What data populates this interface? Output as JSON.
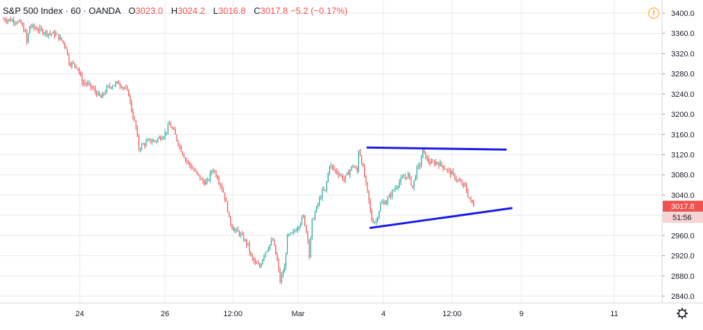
{
  "legend": {
    "symbol": "S&P 500 Index · 60 · OANDA",
    "open_label": "O",
    "open": "3023.0",
    "high_label": "H",
    "high": "3024.2",
    "low_label": "L",
    "low": "3016.8",
    "close_label": "C",
    "close": "3017.8",
    "change": "−5.2 (−0.17%)"
  },
  "price_axis": {
    "ticks": [
      "3400.0",
      "3360.0",
      "3320.0",
      "3280.0",
      "3240.0",
      "3200.0",
      "3160.0",
      "3120.0",
      "3080.0",
      "3040.0",
      "3000.0",
      "2960.0",
      "2920.0",
      "2880.0",
      "2840.0"
    ],
    "last_price": "3017.8",
    "countdown": "51:56"
  },
  "time_axis": {
    "ticks": [
      "24",
      "26",
      "12:00",
      "Mar",
      "4",
      "12:00",
      "9",
      "11"
    ]
  },
  "colors": {
    "up": "#26a69a",
    "down": "#ef5350",
    "trendline": "#1a1ae8",
    "grid": "#e9eaee",
    "axis_text": "#131722"
  },
  "icons": {
    "alert": "alert-icon",
    "settings": "gear-icon"
  },
  "chart_data": {
    "type": "candlestick",
    "instrument": "S&P 500 Index",
    "interval": "60",
    "source": "OANDA",
    "y_range": [
      2830,
      3410
    ],
    "closes_path": [
      [
        0,
        3388
      ],
      [
        4,
        3387
      ],
      [
        8,
        3385
      ],
      [
        12,
        3379
      ],
      [
        15,
        3362
      ],
      [
        16,
        3341
      ],
      [
        18,
        3375
      ],
      [
        22,
        3370
      ],
      [
        27,
        3364
      ],
      [
        31,
        3360
      ],
      [
        36,
        3358
      ],
      [
        40,
        3346
      ],
      [
        43,
        3333
      ],
      [
        45,
        3302
      ],
      [
        49,
        3298
      ],
      [
        51,
        3292
      ],
      [
        54,
        3264
      ],
      [
        59,
        3257
      ],
      [
        63,
        3245
      ],
      [
        67,
        3232
      ],
      [
        71,
        3251
      ],
      [
        75,
        3258
      ],
      [
        79,
        3262
      ],
      [
        83,
        3252
      ],
      [
        86,
        3240
      ],
      [
        88,
        3207
      ],
      [
        91,
        3173
      ],
      [
        93,
        3132
      ],
      [
        96,
        3140
      ],
      [
        100,
        3147
      ],
      [
        104,
        3147
      ],
      [
        108,
        3155
      ],
      [
        111,
        3162
      ],
      [
        114,
        3180
      ],
      [
        117,
        3165
      ],
      [
        119,
        3150
      ],
      [
        122,
        3130
      ],
      [
        125,
        3111
      ],
      [
        128,
        3099
      ],
      [
        131,
        3088
      ],
      [
        134,
        3077
      ],
      [
        137,
        3066
      ],
      [
        140,
        3065
      ],
      [
        143,
        3088
      ],
      [
        144,
        3091
      ],
      [
        147,
        3076
      ],
      [
        151,
        3046
      ],
      [
        154,
        3012
      ],
      [
        155,
        2990
      ],
      [
        158,
        2973
      ],
      [
        162,
        2964
      ],
      [
        165,
        2953
      ],
      [
        168,
        2940
      ],
      [
        170,
        2918
      ],
      [
        173,
        2904
      ],
      [
        176,
        2898
      ],
      [
        179,
        2924
      ],
      [
        182,
        2938
      ],
      [
        185,
        2951
      ],
      [
        188,
        2909
      ],
      [
        190,
        2870
      ],
      [
        193,
        2896
      ],
      [
        195,
        2957
      ],
      [
        199,
        2965
      ],
      [
        203,
        2982
      ],
      [
        206,
        2997
      ],
      [
        209,
        2955
      ],
      [
        210,
        2918
      ],
      [
        212,
        2988
      ],
      [
        216,
        3022
      ],
      [
        219,
        3047
      ],
      [
        221,
        3048
      ],
      [
        224,
        3100
      ],
      [
        227,
        3090
      ],
      [
        231,
        3081
      ],
      [
        234,
        3070
      ],
      [
        237,
        3085
      ],
      [
        240,
        3099
      ],
      [
        243,
        3086
      ],
      [
        244,
        3130
      ],
      [
        245,
        3120
      ],
      [
        247,
        3092
      ],
      [
        250,
        3045
      ],
      [
        253,
        2990
      ],
      [
        256,
        2988
      ],
      [
        259,
        3022
      ],
      [
        263,
        3028
      ],
      [
        268,
        3050
      ],
      [
        273,
        3070
      ],
      [
        278,
        3080
      ],
      [
        281,
        3055
      ],
      [
        284,
        3092
      ],
      [
        286,
        3100
      ],
      [
        288,
        3127
      ],
      [
        291,
        3110
      ],
      [
        294,
        3102
      ],
      [
        297,
        3105
      ],
      [
        301,
        3099
      ],
      [
        305,
        3089
      ],
      [
        308,
        3082
      ],
      [
        311,
        3072
      ],
      [
        314,
        3063
      ],
      [
        317,
        3057
      ],
      [
        319,
        3040
      ],
      [
        321,
        3027
      ],
      [
        324,
        3018
      ]
    ],
    "trendlines": [
      {
        "from": [
          250,
          3134
        ],
        "to": [
          345,
          3130
        ]
      },
      {
        "from": [
          252,
          2975
        ],
        "to": [
          349,
          3014
        ]
      }
    ]
  }
}
